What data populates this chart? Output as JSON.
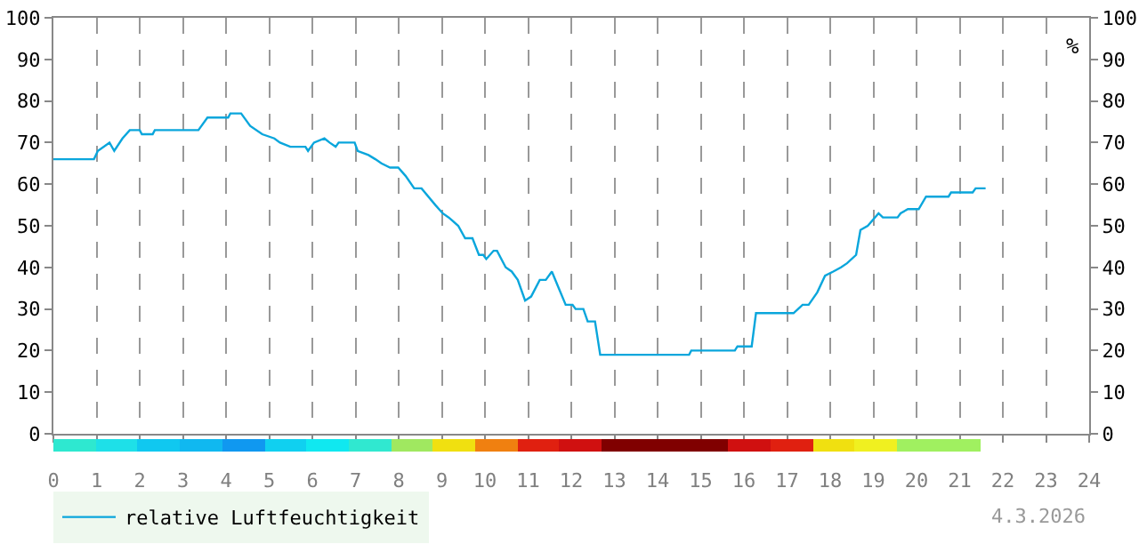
{
  "chart_data": {
    "type": "line",
    "y2label": "%",
    "annotations": [
      "4.3.2026"
    ],
    "series": [
      {
        "name": "relative Luftfeuchtigkeit",
        "color": "#0aa6dc",
        "x": [
          0,
          0.94,
          1.03,
          1.3,
          1.41,
          1.6,
          1.77,
          2.0,
          2.05,
          2.3,
          2.35,
          3.36,
          3.57,
          4.05,
          4.1,
          4.35,
          4.56,
          4.84,
          5.12,
          5.25,
          5.49,
          5.84,
          5.9,
          6.04,
          6.28,
          6.4,
          6.54,
          6.61,
          6.98,
          7.05,
          7.3,
          7.46,
          7.6,
          7.8,
          7.99,
          8.16,
          8.36,
          8.53,
          8.85,
          9.02,
          9.16,
          9.38,
          9.54,
          9.71,
          9.86,
          9.96,
          10.03,
          10.2,
          10.28,
          10.48,
          10.62,
          10.76,
          10.93,
          11.07,
          11.27,
          11.41,
          11.55,
          11.71,
          11.87,
          12.03,
          12.1,
          12.28,
          12.38,
          12.55,
          12.67,
          14.73,
          14.78,
          15.79,
          15.85,
          16.18,
          16.28,
          17.15,
          17.36,
          17.5,
          17.7,
          17.88,
          18.07,
          18.25,
          18.39,
          18.6,
          18.7,
          18.87,
          19.12,
          19.22,
          19.56,
          19.63,
          19.8,
          20.05,
          20.22,
          20.74,
          20.8,
          21.3,
          21.37,
          21.6
        ],
        "values": [
          66,
          66,
          68,
          70,
          68,
          71,
          73,
          73,
          72,
          72,
          73,
          73,
          76,
          76,
          77,
          77,
          74,
          72,
          71,
          70,
          69,
          69,
          68,
          70,
          71,
          70,
          69,
          70,
          70,
          68,
          67,
          66,
          65,
          64,
          64,
          62,
          59,
          59,
          55,
          53,
          52,
          50,
          47,
          47,
          43,
          43,
          42,
          44,
          44,
          40,
          39,
          37,
          32,
          33,
          37,
          37,
          39,
          35,
          31,
          31,
          30,
          30,
          27,
          27,
          19,
          19,
          20,
          20,
          21,
          21,
          29,
          29,
          31,
          31,
          34,
          38,
          39,
          40,
          41,
          43,
          49,
          50,
          53,
          52,
          52,
          53,
          54,
          54,
          57,
          57,
          58,
          58,
          59,
          59
        ]
      }
    ],
    "xlim": [
      0,
      24
    ],
    "xticks": [
      0,
      1,
      2,
      3,
      4,
      5,
      6,
      7,
      8,
      9,
      10,
      11,
      12,
      13,
      14,
      15,
      16,
      17,
      18,
      19,
      20,
      21,
      22,
      23,
      24
    ],
    "ylim": [
      0,
      100
    ],
    "yticks": [
      0,
      10,
      20,
      30,
      40,
      50,
      60,
      70,
      80,
      90,
      100
    ],
    "y2lim": [
      0,
      100
    ],
    "y2ticks": [
      0,
      10,
      20,
      30,
      40,
      50,
      60,
      70,
      80,
      90,
      100
    ],
    "grid": "x",
    "legend": "bottom left",
    "marker": "none",
    "line_style": "solid"
  }
}
